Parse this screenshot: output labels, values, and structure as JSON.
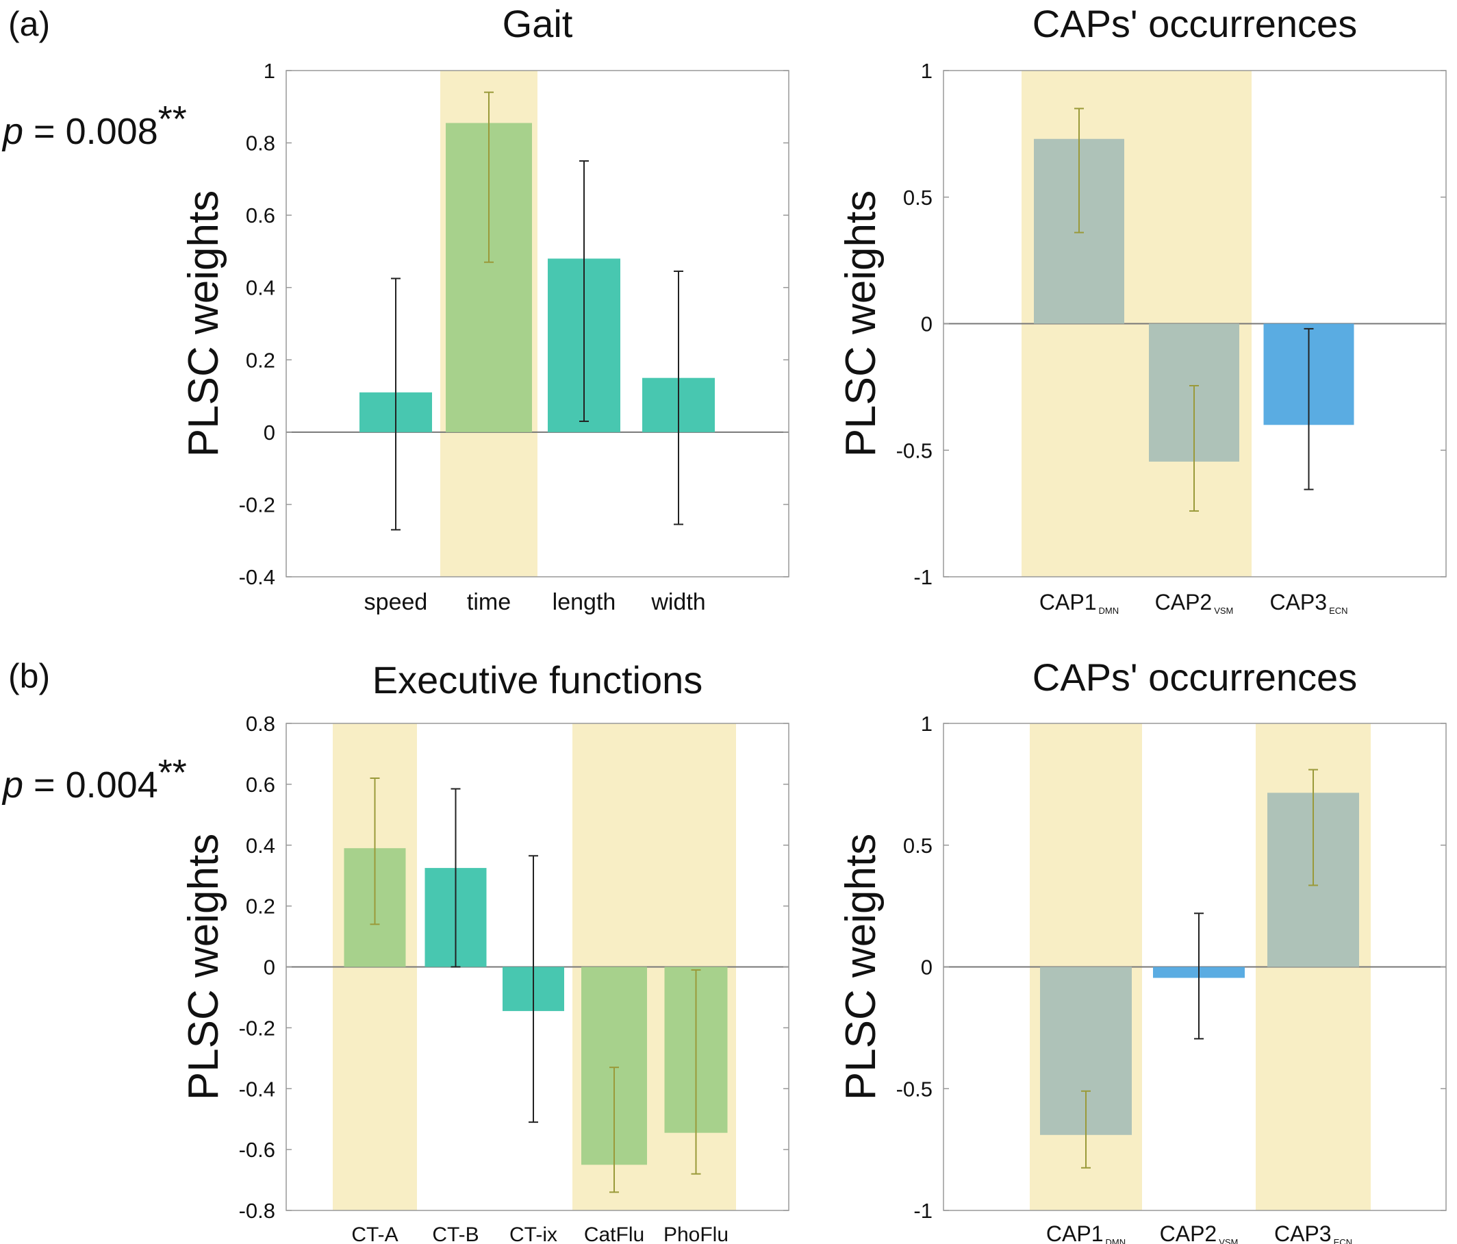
{
  "colors": {
    "highlight": "#f8eec5",
    "teal": "#48c7b0",
    "green": "#a7d18c",
    "grayteal": "#aec2b8",
    "blue": "#5aace2",
    "err_black": "#222222",
    "err_olive": "#9a9a3a",
    "axis": "#999999",
    "zero": "#777777"
  },
  "figure": {
    "panel_a": "(a)",
    "panel_b": "(b)",
    "pvalue_a": {
      "p": "p",
      "eq": " = 0.008",
      "stars": "**"
    },
    "pvalue_b": {
      "p": "p",
      "eq": " = 0.004",
      "stars": "**"
    }
  },
  "chart_data": [
    {
      "type": "bar",
      "title": "Gait",
      "ylabel": "PLSC weights",
      "ylim": [
        -0.4,
        1
      ],
      "yticks": [
        -0.4,
        -0.2,
        0,
        0.2,
        0.4,
        0.6,
        0.8,
        1
      ],
      "ytick_labels": [
        "-0.4",
        "-0.2",
        "0",
        "0.2",
        "0.4",
        "0.6",
        "0.8",
        "1"
      ],
      "categories": [
        {
          "label": "speed",
          "sub": ""
        },
        {
          "label": "time",
          "sub": ""
        },
        {
          "label": "length",
          "sub": ""
        },
        {
          "label": "width",
          "sub": ""
        }
      ],
      "values": [
        0.11,
        0.855,
        0.48,
        0.15
      ],
      "error_low": [
        -0.27,
        0.47,
        0.03,
        -0.255
      ],
      "error_high": [
        0.425,
        0.94,
        0.75,
        0.445
      ],
      "highlighted": [
        false,
        true,
        false,
        false
      ],
      "bar_colors": [
        "teal",
        "green",
        "teal",
        "teal"
      ],
      "grid": false
    },
    {
      "type": "bar",
      "title": "CAPs' occurrences",
      "ylabel": "PLSC weights",
      "ylim": [
        -1,
        1
      ],
      "yticks": [
        -1,
        -0.5,
        0,
        0.5,
        1
      ],
      "ytick_labels": [
        "-1",
        "-0.5",
        "0",
        "0.5",
        "1"
      ],
      "categories": [
        {
          "label": "CAP1",
          "sub": "DMN"
        },
        {
          "label": "CAP2",
          "sub": "VSM"
        },
        {
          "label": "CAP3",
          "sub": "ECN"
        }
      ],
      "values": [
        0.73,
        -0.545,
        -0.4
      ],
      "error_low": [
        0.36,
        -0.74,
        -0.655
      ],
      "error_high": [
        0.85,
        -0.245,
        -0.02
      ],
      "highlighted": [
        true,
        true,
        false
      ],
      "bar_colors": [
        "grayteal",
        "grayteal",
        "blue"
      ],
      "grid": false
    },
    {
      "type": "bar",
      "title": "Executive functions",
      "ylabel": "PLSC weights",
      "ylim": [
        -0.8,
        0.8
      ],
      "yticks": [
        -0.8,
        -0.6,
        -0.4,
        -0.2,
        0,
        0.2,
        0.4,
        0.6,
        0.8
      ],
      "ytick_labels": [
        "-0.8",
        "-0.6",
        "-0.4",
        "-0.2",
        "0",
        "0.2",
        "0.4",
        "0.6",
        "0.8"
      ],
      "categories": [
        {
          "label": "CT-A",
          "sub": ""
        },
        {
          "label": "CT-B",
          "sub": ""
        },
        {
          "label": "CT-ix",
          "sub": ""
        },
        {
          "label": "CatFlu",
          "sub": ""
        },
        {
          "label": "PhoFlu",
          "sub": ""
        }
      ],
      "values": [
        0.39,
        0.325,
        -0.145,
        -0.65,
        -0.545
      ],
      "error_low": [
        0.14,
        0.0,
        -0.51,
        -0.74,
        -0.68
      ],
      "error_high": [
        0.62,
        0.585,
        0.365,
        -0.33,
        -0.01
      ],
      "highlighted": [
        true,
        false,
        false,
        true,
        true
      ],
      "bar_colors": [
        "green",
        "teal",
        "teal",
        "green",
        "green"
      ],
      "grid": false
    },
    {
      "type": "bar",
      "title": "CAPs' occurrences",
      "ylabel": "PLSC weights",
      "ylim": [
        -1,
        1
      ],
      "yticks": [
        -1,
        -0.5,
        0,
        0.5,
        1
      ],
      "ytick_labels": [
        "-1",
        "-0.5",
        "0",
        "0.5",
        "1"
      ],
      "categories": [
        {
          "label": "CAP1",
          "sub": "DMN"
        },
        {
          "label": "CAP2",
          "sub": "VSM"
        },
        {
          "label": "CAP3",
          "sub": "ECN"
        }
      ],
      "values": [
        -0.69,
        -0.045,
        0.715
      ],
      "error_low": [
        -0.825,
        -0.295,
        0.335
      ],
      "error_high": [
        -0.51,
        0.22,
        0.81
      ],
      "highlighted": [
        true,
        false,
        true
      ],
      "bar_colors": [
        "grayteal",
        "blue",
        "grayteal"
      ],
      "grid": false
    }
  ]
}
